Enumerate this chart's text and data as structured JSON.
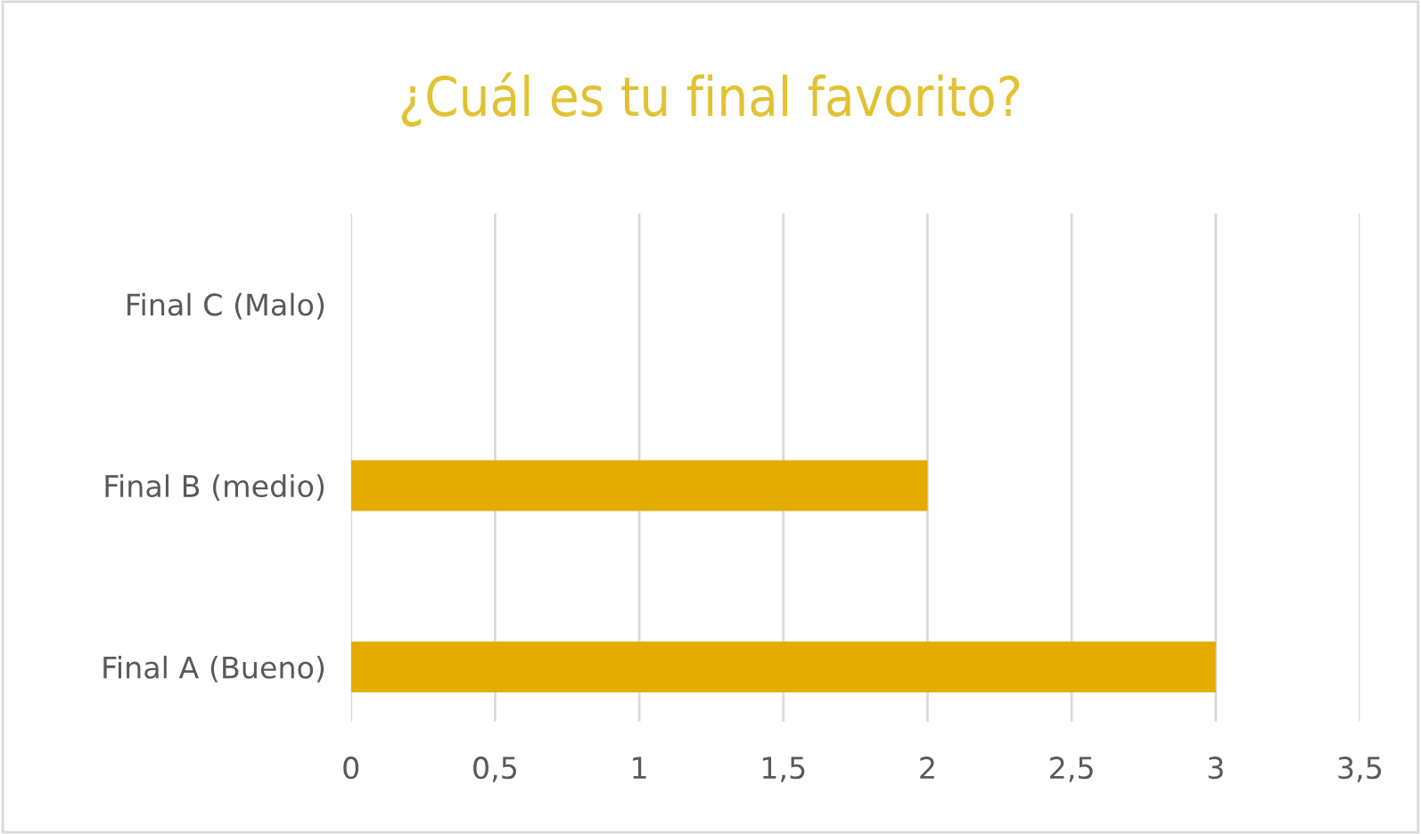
{
  "chart_data": {
    "type": "bar",
    "orientation": "horizontal",
    "title": "¿Cuál es tu final favorito?",
    "categories": [
      "Final C (Malo)",
      "Final B (medio)",
      "Final A (Bueno)"
    ],
    "values": [
      0,
      2,
      3
    ],
    "color": "#e5ac00",
    "xlim": [
      0,
      3.5
    ],
    "xticks": [
      0,
      {
        "value": 0.5,
        "label": "0,5"
      },
      1,
      {
        "value": 1.5,
        "label": "1,5"
      },
      2,
      {
        "value": 2.5,
        "label": "2,5"
      },
      3,
      {
        "value": 3.5,
        "label": "3,5"
      }
    ],
    "grid": "x"
  }
}
